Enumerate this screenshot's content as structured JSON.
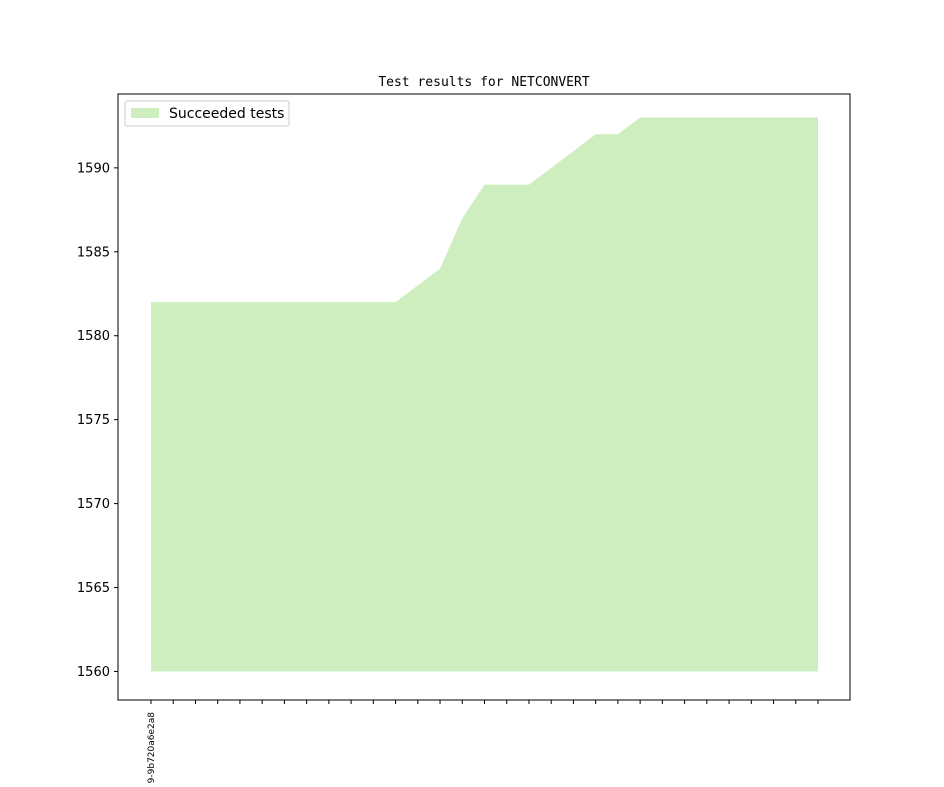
{
  "chart_data": {
    "type": "area",
    "title": "Test results for NETCONVERT",
    "xlabel": "",
    "ylabel": "",
    "x_tick_labels": [
      "9-9b720a6e2a8"
    ],
    "x_tick_count": 31,
    "yticks": [
      1560,
      1565,
      1570,
      1575,
      1580,
      1585,
      1590
    ],
    "ylim": [
      1558.3,
      1594.4
    ],
    "baseline": 1560,
    "grid": false,
    "legend_position": "top-left",
    "series": [
      {
        "name": "Succeeded tests",
        "color": "#cfeebf",
        "values": [
          1582,
          1582,
          1582,
          1582,
          1582,
          1582,
          1582,
          1582,
          1582,
          1582,
          1582,
          1582,
          1583,
          1584,
          1587,
          1589,
          1589,
          1589,
          1590,
          1591,
          1592,
          1592,
          1593,
          1593,
          1593,
          1593,
          1593,
          1593,
          1593,
          1593,
          1593
        ]
      }
    ]
  }
}
